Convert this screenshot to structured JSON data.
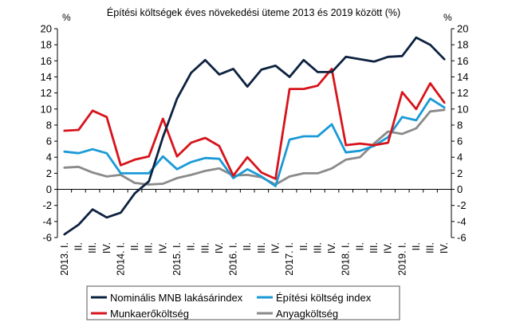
{
  "chart_data": {
    "type": "line",
    "title": "Építési költségek éves növekedési üteme 2013 és 2019 között (%)",
    "ylabel_left": "%",
    "ylabel_right": "%",
    "ylim": [
      -6,
      20
    ],
    "yticks": [
      -6,
      -4,
      -2,
      0,
      2,
      4,
      6,
      8,
      10,
      12,
      14,
      16,
      18,
      20
    ],
    "grid": false,
    "legend_position": "bottom",
    "x": [
      "2013. I.",
      "II.",
      "III.",
      "IV.",
      "2014. I.",
      "II.",
      "III.",
      "IV.",
      "2015. I.",
      "II.",
      "III.",
      "IV.",
      "2016. I.",
      "II.",
      "III.",
      "IV.",
      "2017. I.",
      "II.",
      "III.",
      "IV.",
      "2018. I.",
      "II.",
      "III.",
      "IV.",
      "2019. I.",
      "II.",
      "III.",
      "IV."
    ],
    "series": [
      {
        "name": "Nominális MNB lakásárindex",
        "color": "#0d2240",
        "values": [
          -5.6,
          -4.4,
          -2.5,
          -3.5,
          -2.9,
          -0.5,
          1.0,
          6.5,
          11.3,
          14.5,
          16.1,
          14.3,
          15.0,
          12.8,
          14.9,
          15.4,
          14.0,
          16.1,
          14.6,
          14.6,
          16.5,
          16.2,
          15.9,
          16.5,
          16.6,
          18.9,
          18.0,
          16.2
        ]
      },
      {
        "name": "Építési költség index",
        "color": "#1a9ad6",
        "values": [
          4.7,
          4.5,
          5.0,
          4.5,
          2.0,
          2.0,
          2.0,
          4.1,
          2.5,
          3.4,
          3.9,
          3.8,
          1.4,
          2.5,
          1.6,
          0.4,
          6.2,
          6.6,
          6.6,
          8.1,
          4.6,
          4.8,
          5.4,
          6.5,
          9.0,
          8.6,
          11.3,
          10.2
        ]
      },
      {
        "name": "Munkaerőköltség",
        "color": "#d7141b",
        "values": [
          7.3,
          7.4,
          9.8,
          9.0,
          3.0,
          3.7,
          4.1,
          8.8,
          4.1,
          5.8,
          6.4,
          5.4,
          1.7,
          4.0,
          2.1,
          1.3,
          12.5,
          12.5,
          12.9,
          15.0,
          5.5,
          5.7,
          5.5,
          5.8,
          12.1,
          10.0,
          13.2,
          10.8
        ]
      },
      {
        "name": "Anyagköltség",
        "color": "#8a8a8a",
        "values": [
          2.7,
          2.8,
          2.1,
          1.6,
          1.8,
          0.8,
          0.6,
          0.7,
          1.4,
          1.8,
          2.3,
          2.6,
          1.7,
          1.8,
          1.5,
          0.6,
          1.6,
          2.0,
          2.0,
          2.6,
          3.7,
          4.0,
          5.7,
          7.2,
          6.9,
          7.6,
          9.7,
          9.9
        ]
      }
    ]
  }
}
